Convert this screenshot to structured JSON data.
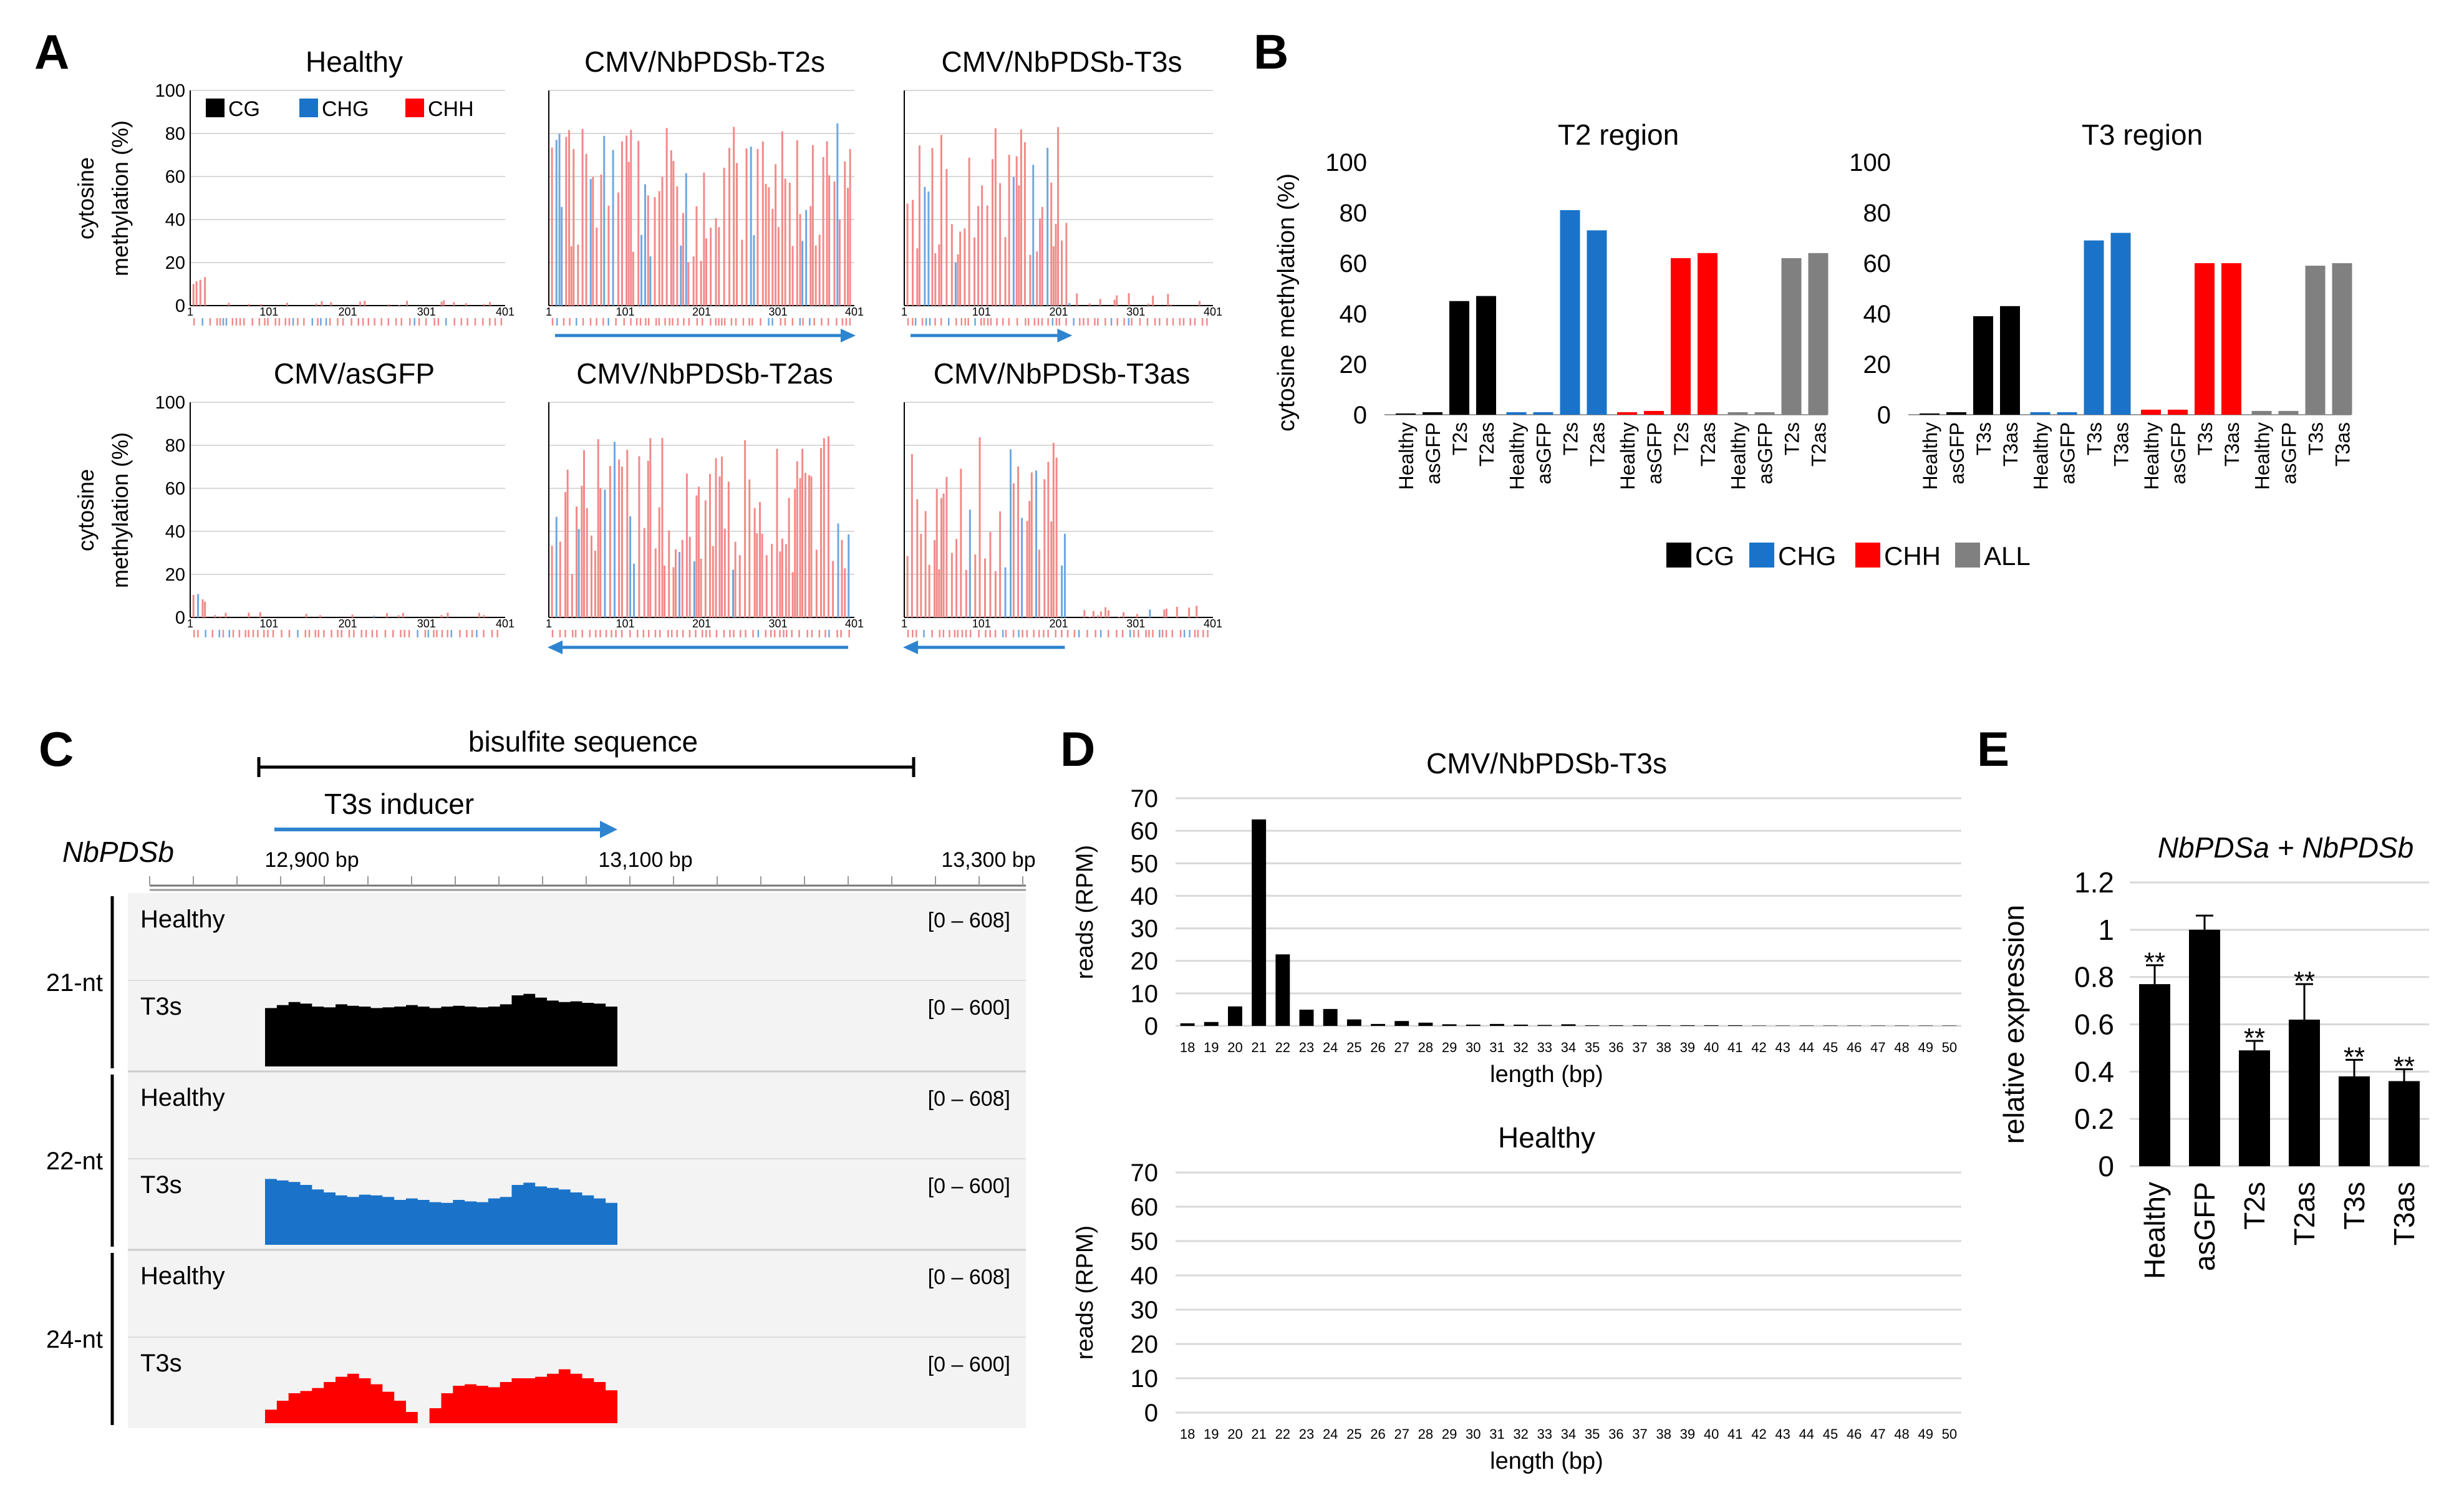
{
  "panel_labels": {
    "a": "A",
    "b": "B",
    "c": "C",
    "d": "D",
    "e": "E"
  },
  "colors": {
    "cg": "#000000",
    "chg": "#1a73c8",
    "chh": "#ff0000",
    "all": "#808080",
    "red_light": "#f28a8a",
    "blue_light": "#6fa7e0",
    "axis": "#000000",
    "grid": "#d9d9d9",
    "track_bg": "#f3f3f3",
    "arrow": "#2e84cf"
  },
  "chart_data": [
    {
      "id": "A",
      "type": "bar",
      "ylabel": "cytosine methylation (%)",
      "ylabel_lines": [
        "cytosine",
        "methylation (%)"
      ],
      "ylim": [
        0,
        100
      ],
      "yticks": [
        "0",
        "20",
        "40",
        "60",
        "80",
        "100"
      ],
      "xticks": [
        "1",
        "101",
        "201",
        "301",
        "401"
      ],
      "legend": [
        "CG",
        "CHG",
        "CHH"
      ],
      "series_names": [
        "CG",
        "CHG",
        "CHH"
      ],
      "subplots": [
        {
          "title": "Healthy",
          "methylated_range_bp": [
            0,
            0
          ],
          "typical_level": 5,
          "arrow": ""
        },
        {
          "title": "CMV/NbPDSb-T2s",
          "methylated_range_bp": [
            0,
            410
          ],
          "typical_level": 60,
          "arrow": "right"
        },
        {
          "title": "CMV/NbPDSb-T3s",
          "methylated_range_bp": [
            0,
            215
          ],
          "typical_level": 60,
          "arrow": "right"
        },
        {
          "title": "CMV/asGFP",
          "methylated_range_bp": [
            0,
            0
          ],
          "typical_level": 3,
          "arrow": ""
        },
        {
          "title": "CMV/NbPDSb-T2as",
          "methylated_range_bp": [
            0,
            410
          ],
          "typical_level": 60,
          "arrow": "left"
        },
        {
          "title": "CMV/NbPDSb-T3as",
          "methylated_range_bp": [
            0,
            215
          ],
          "typical_level": 60,
          "arrow": "left"
        }
      ]
    },
    {
      "id": "B",
      "type": "bar",
      "ylabel": "cytosine methylation (%)",
      "ylim": [
        0,
        100
      ],
      "yticks": [
        "0",
        "20",
        "40",
        "60",
        "80",
        "100"
      ],
      "legend": [
        "CG",
        "CHG",
        "CHH",
        "ALL"
      ],
      "series_names": [
        "CG",
        "CHG",
        "CHH",
        "ALL"
      ],
      "subplots": [
        {
          "title": "T2 region",
          "categories": [
            "Healthy",
            "asGFP",
            "T2s",
            "T2as"
          ],
          "series": [
            {
              "name": "CG",
              "values": [
                0.5,
                1,
                45,
                47
              ]
            },
            {
              "name": "CHG",
              "values": [
                1,
                1,
                81,
                73
              ]
            },
            {
              "name": "CHH",
              "values": [
                1,
                1.5,
                62,
                64
              ]
            },
            {
              "name": "ALL",
              "values": [
                1,
                1,
                62,
                64
              ]
            }
          ]
        },
        {
          "title": "T3 region",
          "categories": [
            "Healthy",
            "asGFP",
            "T3s",
            "T3as"
          ],
          "series": [
            {
              "name": "CG",
              "values": [
                0.5,
                1,
                39,
                43
              ]
            },
            {
              "name": "CHG",
              "values": [
                1,
                1,
                69,
                72
              ]
            },
            {
              "name": "CHH",
              "values": [
                2,
                2,
                60,
                60
              ]
            },
            {
              "name": "ALL",
              "values": [
                1.5,
                1.5,
                59,
                60
              ]
            }
          ]
        }
      ]
    },
    {
      "id": "C",
      "type": "area",
      "gene_label": "NbPDSb",
      "bisulfite_label": "bisulfite sequence",
      "inducer_label": "T3s inducer",
      "coordinates": [
        "12,900 bp",
        "13,100 bp",
        "13,300 bp"
      ],
      "tracks": [
        {
          "group": "21-nt",
          "rows": [
            {
              "label": "Healthy",
              "range": "[0 – 608]",
              "coverage": []
            },
            {
              "label": "T3s",
              "range": "[0 – 600]",
              "color": "cg",
              "coverage": [
                0.78,
                0.82,
                0.86,
                0.84,
                0.8,
                0.79,
                0.83,
                0.81,
                0.8,
                0.78,
                0.79,
                0.8,
                0.82,
                0.8,
                0.78,
                0.8,
                0.81,
                0.8,
                0.79,
                0.8,
                0.83,
                0.95,
                0.97,
                0.92,
                0.88,
                0.86,
                0.87,
                0.85,
                0.84,
                0.8
              ]
            }
          ]
        },
        {
          "group": "22-nt",
          "rows": [
            {
              "label": "Healthy",
              "range": "[0 – 608]",
              "coverage": []
            },
            {
              "label": "T3s",
              "range": "[0 – 600]",
              "color": "chg",
              "coverage": [
                0.88,
                0.86,
                0.84,
                0.8,
                0.74,
                0.7,
                0.66,
                0.64,
                0.67,
                0.66,
                0.64,
                0.6,
                0.62,
                0.6,
                0.57,
                0.56,
                0.6,
                0.58,
                0.57,
                0.62,
                0.64,
                0.8,
                0.83,
                0.78,
                0.76,
                0.74,
                0.7,
                0.66,
                0.62,
                0.56
              ]
            }
          ]
        },
        {
          "group": "24-nt",
          "rows": [
            {
              "label": "Healthy",
              "range": "[0 – 608]",
              "coverage": []
            },
            {
              "label": "T3s",
              "range": "[0 – 600]",
              "color": "chh",
              "coverage": [
                0.18,
                0.3,
                0.4,
                0.43,
                0.47,
                0.55,
                0.62,
                0.66,
                0.6,
                0.52,
                0.42,
                0.3,
                0.15,
                0,
                0.2,
                0.4,
                0.5,
                0.52,
                0.5,
                0.48,
                0.55,
                0.6,
                0.6,
                0.62,
                0.66,
                0.72,
                0.66,
                0.6,
                0.55,
                0.44
              ]
            }
          ]
        }
      ]
    },
    {
      "id": "D",
      "type": "bar",
      "ylabel": "reads (RPM)",
      "xlabel": "length (bp)",
      "ylim": [
        0,
        70
      ],
      "yticks": [
        "0",
        "10",
        "20",
        "30",
        "40",
        "50",
        "60",
        "70"
      ],
      "categories": [
        "18",
        "19",
        "20",
        "21",
        "22",
        "23",
        "24",
        "25",
        "26",
        "27",
        "28",
        "29",
        "30",
        "31",
        "32",
        "33",
        "34",
        "35",
        "36",
        "37",
        "38",
        "39",
        "40",
        "41",
        "42",
        "43",
        "44",
        "45",
        "46",
        "47",
        "48",
        "49",
        "50"
      ],
      "subplots": [
        {
          "title": "CMV/NbPDSb-T3s",
          "values": [
            0.8,
            1.2,
            6,
            63.5,
            22,
            5,
            5.2,
            2,
            0.6,
            1.5,
            1,
            0.5,
            0.4,
            0.6,
            0.4,
            0.3,
            0.5,
            0.2,
            0.2,
            0.2,
            0.2,
            0.2,
            0.2,
            0.2,
            0.1,
            0.1,
            0.1,
            0.1,
            0.1,
            0.1,
            0.1,
            0.1,
            0.1
          ]
        },
        {
          "title": "Healthy",
          "values": [
            0,
            0,
            0,
            0,
            0,
            0,
            0,
            0,
            0,
            0,
            0,
            0,
            0,
            0,
            0,
            0,
            0,
            0,
            0,
            0,
            0,
            0,
            0,
            0,
            0,
            0,
            0,
            0,
            0,
            0,
            0,
            0,
            0
          ]
        }
      ]
    },
    {
      "id": "E",
      "type": "bar",
      "title": "NbPDSa + NbPDSb",
      "ylabel": "relative expression",
      "ylim": [
        0,
        1.2
      ],
      "yticks": [
        "0",
        "0.2",
        "0.4",
        "0.6",
        "0.8",
        "1",
        "1.2"
      ],
      "categories": [
        "Healthy",
        "asGFP",
        "T2s",
        "T2as",
        "T3s",
        "T3as"
      ],
      "values": [
        0.77,
        1.0,
        0.49,
        0.62,
        0.38,
        0.36
      ],
      "errors": [
        0.08,
        0.06,
        0.04,
        0.15,
        0.07,
        0.05
      ],
      "significance": [
        "**",
        "",
        "**",
        "**",
        "**",
        "**"
      ]
    }
  ]
}
